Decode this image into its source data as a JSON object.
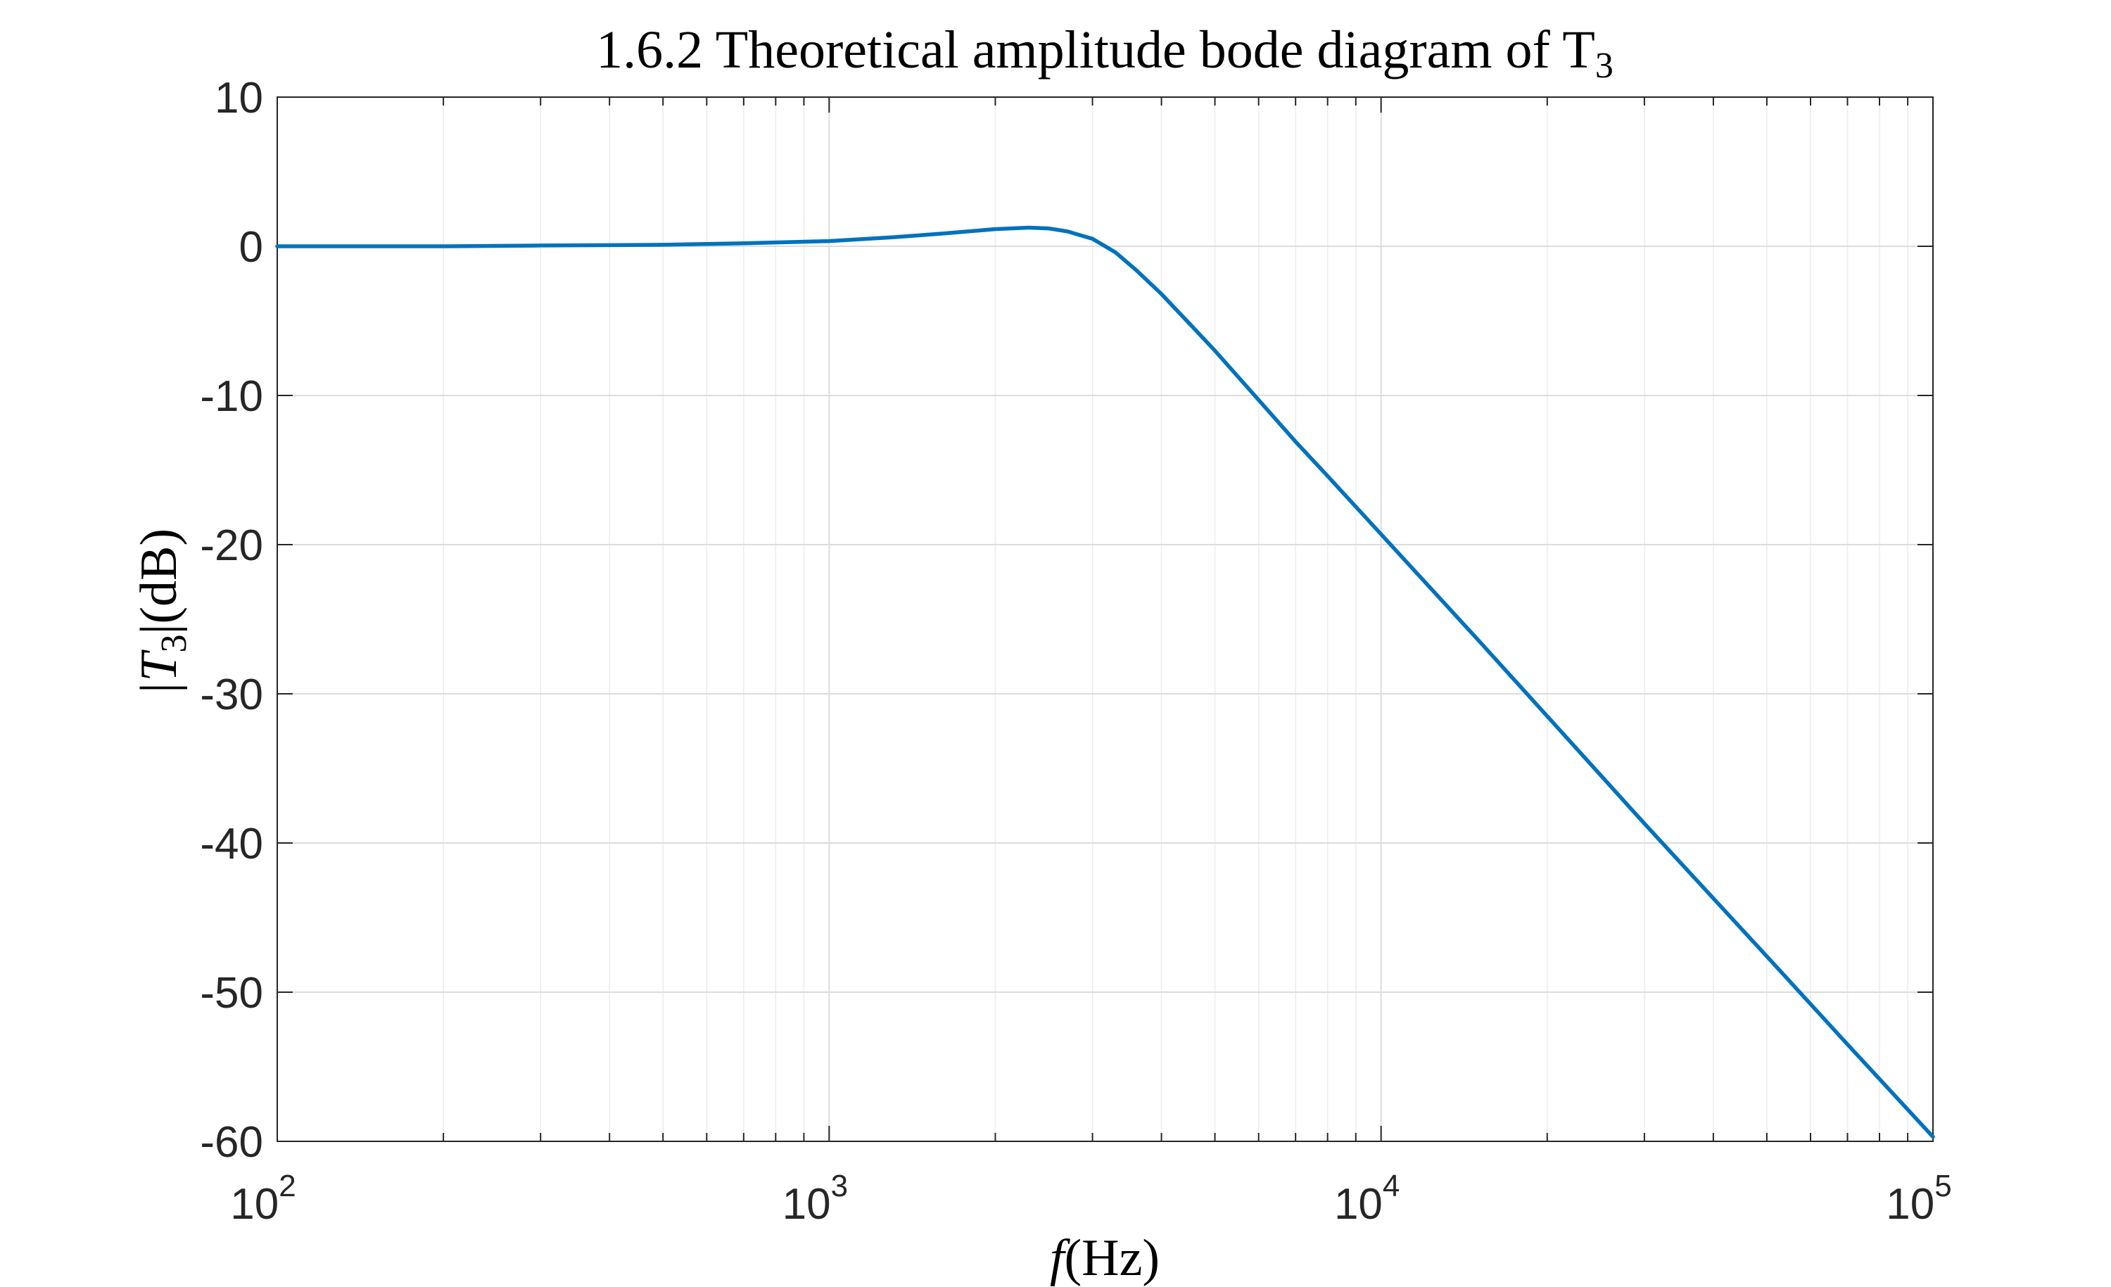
{
  "chart_data": {
    "type": "line",
    "title": {
      "main": "1.6.2 Theoretical amplitude bode diagram of T",
      "sub": "3"
    },
    "xlabel": {
      "var": "f",
      "unit": "(Hz)"
    },
    "ylabel": {
      "text": "|T",
      "sub": "3",
      "tail": "|(dB)"
    },
    "x_scale": "log",
    "xlim": [
      100,
      100000
    ],
    "ylim": [
      -60,
      10
    ],
    "x_ticks": [
      {
        "value": 100,
        "base": "10",
        "exp": "2"
      },
      {
        "value": 1000,
        "base": "10",
        "exp": "3"
      },
      {
        "value": 10000,
        "base": "10",
        "exp": "4"
      },
      {
        "value": 100000,
        "base": "10",
        "exp": "5"
      }
    ],
    "y_ticks": [
      10,
      0,
      -10,
      -20,
      -30,
      -40,
      -50,
      -60
    ],
    "grid": true,
    "minor_grid": true,
    "series": [
      {
        "color": "#0072BD",
        "x": [
          100,
          150,
          200,
          300,
          500,
          700,
          1000,
          1300,
          1600,
          2000,
          2300,
          2500,
          2700,
          3000,
          3300,
          3600,
          4000,
          4500,
          5000,
          6000,
          7000,
          8000,
          10000,
          15000,
          20000,
          30000,
          50000,
          70000,
          100000
        ],
        "y": [
          0.0,
          0.0,
          0.0,
          0.05,
          0.1,
          0.2,
          0.35,
          0.6,
          0.85,
          1.15,
          1.25,
          1.2,
          1.0,
          0.5,
          -0.4,
          -1.6,
          -3.2,
          -5.2,
          -7.0,
          -10.3,
          -13.1,
          -15.4,
          -19.3,
          -26.4,
          -31.5,
          -38.7,
          -47.6,
          -53.5,
          -59.7
        ]
      }
    ]
  }
}
